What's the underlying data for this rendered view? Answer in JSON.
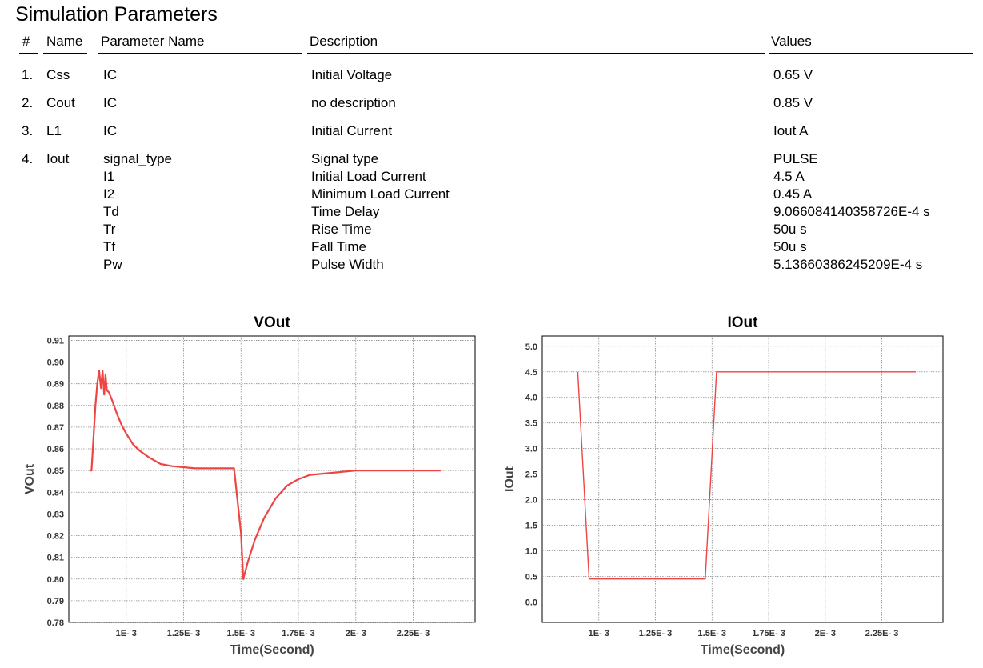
{
  "title": "Simulation Parameters",
  "table": {
    "headers": {
      "num": "#",
      "name": "Name",
      "param": "Parameter Name",
      "desc": "Description",
      "values": "Values"
    },
    "rows": [
      {
        "num": "1.",
        "name": "Css",
        "params": [
          {
            "param": "IC",
            "desc": "Initial Voltage",
            "value": "0.65 V"
          }
        ]
      },
      {
        "num": "2.",
        "name": "Cout",
        "params": [
          {
            "param": "IC",
            "desc": "no description",
            "value": "0.85 V"
          }
        ]
      },
      {
        "num": "3.",
        "name": "L1",
        "params": [
          {
            "param": "IC",
            "desc": "Initial Current",
            "value": "Iout A"
          }
        ]
      },
      {
        "num": "4.",
        "name": "Iout",
        "params": [
          {
            "param": "signal_type",
            "desc": "Signal type",
            "value": "PULSE"
          },
          {
            "param": "I1",
            "desc": "Initial Load Current",
            "value": "4.5 A"
          },
          {
            "param": "I2",
            "desc": "Minimum Load Current",
            "value": "0.45 A"
          },
          {
            "param": "Td",
            "desc": "Time Delay",
            "value": "9.066084140358726E-4 s"
          },
          {
            "param": "Tr",
            "desc": "Rise Time",
            "value": "50u s"
          },
          {
            "param": "Tf",
            "desc": "Fall Time",
            "value": "50u s"
          },
          {
            "param": "Pw",
            "desc": "Pulse Width",
            "value": "5.13660386245209E-4 s"
          }
        ]
      }
    ]
  },
  "chart_data": [
    {
      "type": "line",
      "title": "VOut",
      "xlabel": "Time(Second)",
      "ylabel": "VOut",
      "xlim": [
        0.00075,
        0.00252
      ],
      "ylim": [
        0.78,
        0.912
      ],
      "xticks": [
        0.001,
        0.00125,
        0.0015,
        0.00175,
        0.002,
        0.00225
      ],
      "xtick_labels": [
        "1E- 3",
        "1.25E- 3",
        "1.5E- 3",
        "1.75E- 3",
        "2E- 3",
        "2.25E- 3"
      ],
      "yticks": [
        0.78,
        0.79,
        0.8,
        0.81,
        0.82,
        0.83,
        0.84,
        0.85,
        0.86,
        0.87,
        0.88,
        0.89,
        0.9,
        0.91
      ],
      "ytick_labels": [
        "0.78",
        "0.79",
        "0.80",
        "0.81",
        "0.82",
        "0.83",
        "0.84",
        "0.85",
        "0.86",
        "0.87",
        "0.88",
        "0.89",
        "0.90",
        "0.91"
      ],
      "grid": true,
      "color": "#ee4444",
      "series": [
        {
          "x": [
            0.00084,
            0.000849,
            0.000858,
            0.000866,
            0.000874,
            0.000882,
            0.00089,
            0.000897,
            0.000904,
            0.00091,
            0.000916,
            0.000925,
            0.00094,
            0.00096,
            0.00098,
            0.001,
            0.00103,
            0.00106,
            0.0011,
            0.00115,
            0.0012,
            0.0013,
            0.0014,
            0.00147,
            0.0015,
            0.00151,
            0.00153,
            0.00156,
            0.0016,
            0.00165,
            0.0017,
            0.00175,
            0.0018,
            0.0019,
            0.002,
            0.0021,
            0.0022,
            0.0023,
            0.00237
          ],
          "y": [
            0.85,
            0.85,
            0.866,
            0.88,
            0.89,
            0.896,
            0.888,
            0.896,
            0.885,
            0.894,
            0.887,
            0.886,
            0.882,
            0.876,
            0.871,
            0.867,
            0.862,
            0.859,
            0.856,
            0.853,
            0.852,
            0.851,
            0.851,
            0.851,
            0.821,
            0.8,
            0.808,
            0.818,
            0.828,
            0.837,
            0.843,
            0.846,
            0.848,
            0.849,
            0.85,
            0.85,
            0.85,
            0.85,
            0.85
          ]
        }
      ]
    },
    {
      "type": "line",
      "title": "IOut",
      "xlabel": "Time(Second)",
      "ylabel": "IOut",
      "xlim": [
        0.00075,
        0.00252
      ],
      "ylim": [
        -0.4,
        5.2
      ],
      "xticks": [
        0.001,
        0.00125,
        0.0015,
        0.00175,
        0.002,
        0.00225
      ],
      "xtick_labels": [
        "1E- 3",
        "1.25E- 3",
        "1.5E- 3",
        "1.75E- 3",
        "2E- 3",
        "2.25E- 3"
      ],
      "yticks": [
        0.0,
        0.5,
        1.0,
        1.5,
        2.0,
        2.5,
        3.0,
        3.5,
        4.0,
        4.5,
        5.0
      ],
      "ytick_labels": [
        "0.0",
        "0.5",
        "1.0",
        "1.5",
        "2.0",
        "2.5",
        "3.0",
        "3.5",
        "4.0",
        "4.5",
        "5.0"
      ],
      "grid": true,
      "color": "#ee4444",
      "series": [
        {
          "x": [
            0.000907,
            0.000957,
            0.00147,
            0.00152,
            0.0024
          ],
          "y": [
            4.5,
            0.45,
            0.45,
            4.5,
            4.5
          ]
        }
      ]
    }
  ]
}
